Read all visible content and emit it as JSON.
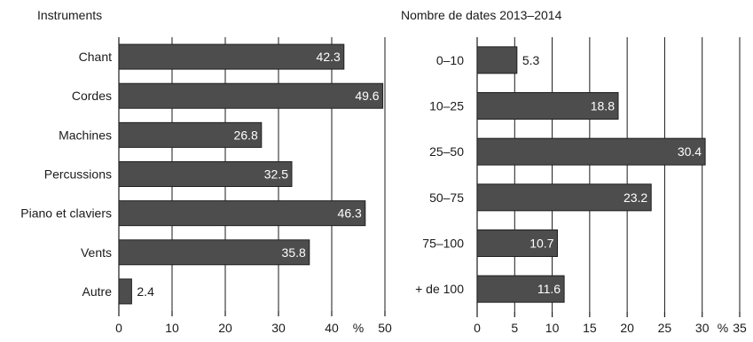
{
  "chart_data": [
    {
      "type": "bar",
      "orientation": "horizontal",
      "title": "Instruments",
      "unit": "%",
      "categories": [
        "Chant",
        "Cordes",
        "Machines",
        "Percussions",
        "Piano et claviers",
        "Vents",
        "Autre"
      ],
      "values": [
        42.3,
        49.6,
        26.8,
        32.5,
        46.3,
        35.8,
        2.4
      ],
      "value_labels": [
        "42.3",
        "49.6",
        "26.8",
        "32.5",
        "46.3",
        "35.8",
        "2.4"
      ],
      "xlim": [
        0,
        50
      ],
      "ticks": [
        0,
        10,
        20,
        30,
        40,
        50
      ],
      "tick_labels": [
        "0",
        "10",
        "20",
        "30",
        "40",
        "50"
      ],
      "grid": true,
      "bar_color": "#4d4d4d"
    },
    {
      "type": "bar",
      "orientation": "horizontal",
      "title": "Nombre de dates 2013–2014",
      "unit": "%",
      "categories": [
        "0–10",
        "10–25",
        "25–50",
        "50–75",
        "75–100",
        "+ de 100"
      ],
      "values": [
        5.3,
        18.8,
        30.4,
        23.2,
        10.7,
        11.6
      ],
      "value_labels": [
        "5.3",
        "18.8",
        "30.4",
        "23.2",
        "10.7",
        "11.6"
      ],
      "xlim": [
        0,
        35
      ],
      "ticks": [
        0,
        5,
        10,
        15,
        20,
        25,
        30,
        35
      ],
      "tick_labels": [
        "0",
        "5",
        "10",
        "15",
        "20",
        "25",
        "30",
        "35"
      ],
      "grid": true,
      "bar_color": "#4d4d4d"
    }
  ]
}
